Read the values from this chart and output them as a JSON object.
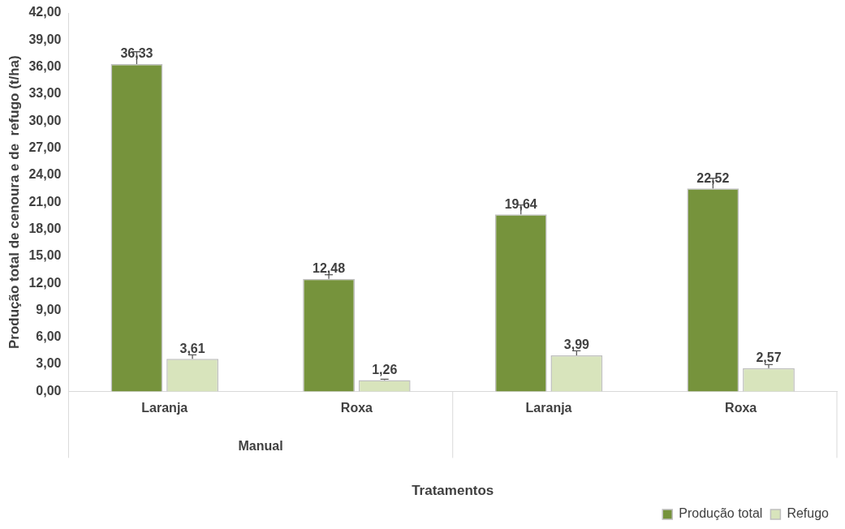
{
  "chart_data": {
    "type": "bar",
    "ylabel": "Produção total de cenoura e de  refugo (t/ha)",
    "xlabel": "Tratamentos",
    "categories": [
      "Laranja",
      "Roxa",
      "Laranja",
      "Roxa"
    ],
    "annotations": [
      "Manual"
    ],
    "series": [
      {
        "name": "Produção total",
        "color": "#76933c",
        "values": [
          36.33,
          12.48,
          19.64,
          22.52
        ],
        "value_labels": [
          "36,33",
          "12,48",
          "19,64",
          "22,52"
        ],
        "errors": [
          [
            36.33,
            37.7
          ],
          [
            12.48,
            12.95
          ],
          [
            19.64,
            20.7
          ],
          [
            22.52,
            23.65
          ]
        ]
      },
      {
        "name": "Refugo",
        "color": "#d8e4bc",
        "values": [
          3.61,
          1.26,
          3.99,
          2.57
        ],
        "value_labels": [
          "3,61",
          "1,26",
          "3,99",
          "2,57"
        ],
        "errors": [
          [
            3.61,
            4.05
          ],
          [
            1.26,
            1.35
          ],
          [
            3.99,
            4.5
          ],
          [
            2.57,
            2.97
          ]
        ]
      }
    ],
    "ylim": [
      0,
      42
    ],
    "yticks": [
      {
        "value": 0,
        "label": "0,00"
      },
      {
        "value": 3,
        "label": "3,00"
      },
      {
        "value": 6,
        "label": "6,00"
      },
      {
        "value": 9,
        "label": "9,00"
      },
      {
        "value": 12,
        "label": "12,00"
      },
      {
        "value": 15,
        "label": "15,00"
      },
      {
        "value": 18,
        "label": "18,00"
      },
      {
        "value": 21,
        "label": "21,00"
      },
      {
        "value": 24,
        "label": "24,00"
      },
      {
        "value": 27,
        "label": "27,00"
      },
      {
        "value": 30,
        "label": "30,00"
      },
      {
        "value": 33,
        "label": "33,00"
      },
      {
        "value": 36,
        "label": "36,00"
      },
      {
        "value": 39,
        "label": "39,00"
      },
      {
        "value": 42,
        "label": "42,00"
      }
    ],
    "grid": false,
    "legend": "bottom right"
  }
}
